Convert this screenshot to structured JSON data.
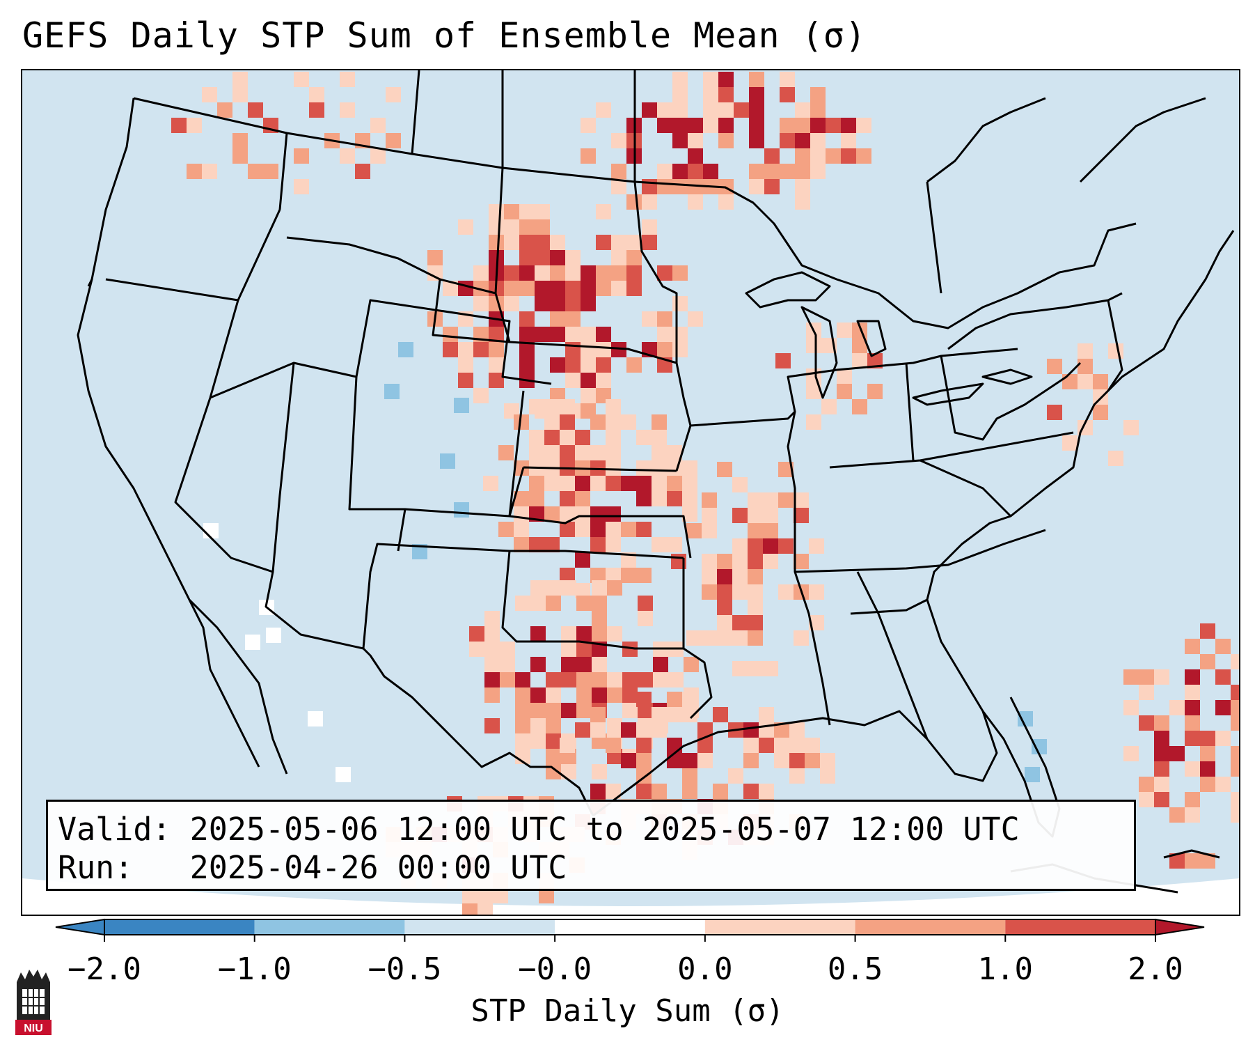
{
  "title": "GEFS Daily STP Sum of Ensemble Mean (σ)",
  "info": {
    "valid_line": "Valid: 2025-05-06 12:00 UTC to 2025-05-07 12:00 UTC",
    "run_line": "Run:   2025-04-26 00:00 UTC"
  },
  "colorbar": {
    "label": "STP Daily Sum (σ)",
    "ticks": [
      "−2.0",
      "−1.0",
      "−0.5",
      "−0.0",
      "0.0",
      "0.5",
      "1.0",
      "2.0"
    ],
    "bin_colors": [
      "#3a85c2",
      "#8fc4e2",
      "#d1e4f0",
      "#ffffff",
      "#fcd3c0",
      "#f4a283",
      "#d9534a",
      "#b2182b"
    ]
  },
  "logo": {
    "text": "NIU"
  },
  "colors": {
    "background_anomaly": "#d1e4f0",
    "low_pos": "#fcd3c0",
    "mid_pos": "#f4a283",
    "high_pos": "#d9534a",
    "max_pos": "#b2182b",
    "low_neg": "#8fc4e2",
    "near_zero": "#ffffff"
  },
  "map": {
    "projection": "Lambert Conformal (CONUS)",
    "boundaries": "states, provinces, countries, coastlines",
    "units": "σ"
  }
}
